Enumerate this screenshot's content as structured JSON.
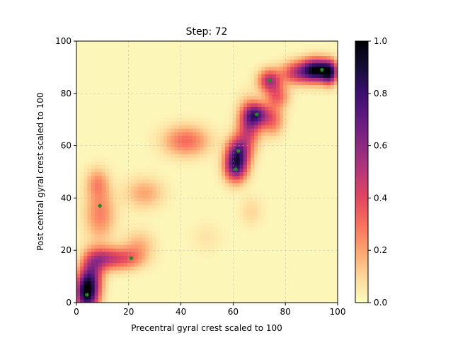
{
  "chart_data": {
    "type": "heatmap",
    "title": "Step: 72",
    "xlabel": "Precentral gyral crest scaled to 100",
    "ylabel": "Post central gyral crest scaled to 100",
    "xlim": [
      0,
      100
    ],
    "ylim": [
      0,
      100
    ],
    "xticks": [
      0,
      20,
      40,
      60,
      80,
      100
    ],
    "yticks": [
      0,
      20,
      40,
      60,
      80,
      100
    ],
    "grid": true,
    "colormap": "magma_r",
    "colorbar": {
      "range": [
        0,
        1
      ],
      "ticks": [
        0.0,
        0.2,
        0.4,
        0.6,
        0.8,
        1.0
      ],
      "tick_labels": [
        "0.0",
        "0.2",
        "0.4",
        "0.6",
        "0.8",
        "1.0"
      ]
    },
    "point_color": "#1e8c1e",
    "points": [
      {
        "x": 4,
        "y": 3
      },
      {
        "x": 9,
        "y": 37
      },
      {
        "x": 21,
        "y": 17
      },
      {
        "x": 61,
        "y": 51
      },
      {
        "x": 62,
        "y": 58
      },
      {
        "x": 69,
        "y": 72
      },
      {
        "x": 74,
        "y": 85
      },
      {
        "x": 94,
        "y": 89
      }
    ],
    "density_blobs": [
      {
        "x": 4,
        "y": 4,
        "sx": 3,
        "sy": 5,
        "v": 0.95
      },
      {
        "x": 6,
        "y": 12,
        "sx": 3,
        "sy": 5,
        "v": 0.4
      },
      {
        "x": 10,
        "y": 17,
        "sx": 4,
        "sy": 3,
        "v": 0.35
      },
      {
        "x": 18,
        "y": 17,
        "sx": 5,
        "sy": 3,
        "v": 0.32
      },
      {
        "x": 24,
        "y": 22,
        "sx": 4,
        "sy": 4,
        "v": 0.15
      },
      {
        "x": 9,
        "y": 34,
        "sx": 4,
        "sy": 7,
        "v": 0.25
      },
      {
        "x": 8,
        "y": 46,
        "sx": 3,
        "sy": 4,
        "v": 0.2
      },
      {
        "x": 26,
        "y": 42,
        "sx": 5,
        "sy": 4,
        "v": 0.18
      },
      {
        "x": 42,
        "y": 62,
        "sx": 6,
        "sy": 4,
        "v": 0.3
      },
      {
        "x": 61,
        "y": 52,
        "sx": 3,
        "sy": 4,
        "v": 0.65
      },
      {
        "x": 62,
        "y": 58,
        "sx": 3,
        "sy": 4,
        "v": 0.55
      },
      {
        "x": 66,
        "y": 68,
        "sx": 3,
        "sy": 6,
        "v": 0.45
      },
      {
        "x": 69,
        "y": 72,
        "sx": 3,
        "sy": 3,
        "v": 0.55
      },
      {
        "x": 75,
        "y": 70,
        "sx": 3,
        "sy": 4,
        "v": 0.3
      },
      {
        "x": 74,
        "y": 85,
        "sx": 3,
        "sy": 3,
        "v": 0.5
      },
      {
        "x": 77,
        "y": 79,
        "sx": 3,
        "sy": 3,
        "v": 0.3
      },
      {
        "x": 84,
        "y": 88,
        "sx": 4,
        "sy": 3,
        "v": 0.4
      },
      {
        "x": 92,
        "y": 89,
        "sx": 4,
        "sy": 3,
        "v": 0.95
      },
      {
        "x": 97,
        "y": 88,
        "sx": 2,
        "sy": 3,
        "v": 0.6
      },
      {
        "x": 67,
        "y": 35,
        "sx": 3,
        "sy": 4,
        "v": 0.08
      },
      {
        "x": 50,
        "y": 25,
        "sx": 4,
        "sy": 4,
        "v": 0.05
      }
    ]
  }
}
